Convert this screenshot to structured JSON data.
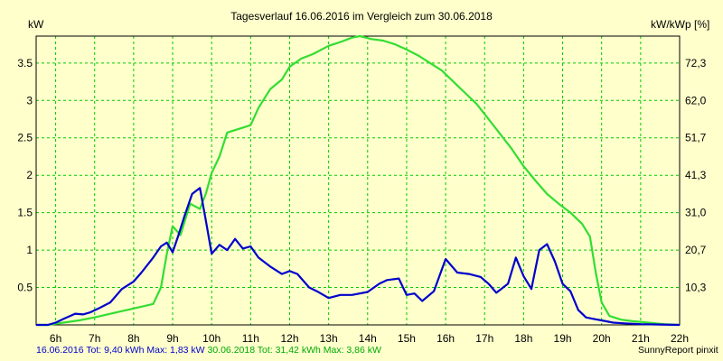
{
  "chart_data": {
    "type": "line",
    "title": "Tagesverlauf 16.06.2016 im Vergleich zum 30.06.2018",
    "ylabel_left": "kW",
    "ylabel_right": "kW/kWp [%]",
    "ylim": [
      0,
      3.86
    ],
    "y_ticks": [
      "0.5",
      "1",
      "1.5",
      "2",
      "2.5",
      "3",
      "3.5"
    ],
    "y_right_ticks": [
      "10,3",
      "20,7",
      "31,0",
      "41,3",
      "51,7",
      "62,0",
      "72,3"
    ],
    "x_ticks": [
      "6h",
      "7h",
      "8h",
      "9h",
      "10h",
      "11h",
      "12h",
      "13h",
      "14h",
      "15h",
      "16h",
      "17h",
      "18h",
      "19h",
      "20h",
      "21h",
      "22h"
    ],
    "grid": true,
    "series": [
      {
        "name": "16.06.2016",
        "color": "#0000cc",
        "points": [
          [
            5.5,
            0
          ],
          [
            5.8,
            0
          ],
          [
            6.0,
            0.03
          ],
          [
            6.2,
            0.08
          ],
          [
            6.5,
            0.15
          ],
          [
            6.7,
            0.14
          ],
          [
            6.9,
            0.17
          ],
          [
            7.1,
            0.22
          ],
          [
            7.4,
            0.3
          ],
          [
            7.7,
            0.48
          ],
          [
            8.0,
            0.58
          ],
          [
            8.2,
            0.7
          ],
          [
            8.5,
            0.9
          ],
          [
            8.7,
            1.05
          ],
          [
            8.85,
            1.1
          ],
          [
            9.0,
            0.97
          ],
          [
            9.15,
            1.2
          ],
          [
            9.3,
            1.45
          ],
          [
            9.5,
            1.75
          ],
          [
            9.7,
            1.83
          ],
          [
            9.85,
            1.4
          ],
          [
            10.0,
            0.95
          ],
          [
            10.2,
            1.07
          ],
          [
            10.4,
            1.0
          ],
          [
            10.6,
            1.15
          ],
          [
            10.8,
            1.02
          ],
          [
            11.0,
            1.05
          ],
          [
            11.2,
            0.9
          ],
          [
            11.5,
            0.78
          ],
          [
            11.8,
            0.68
          ],
          [
            12.0,
            0.72
          ],
          [
            12.2,
            0.68
          ],
          [
            12.5,
            0.5
          ],
          [
            12.7,
            0.45
          ],
          [
            13.0,
            0.36
          ],
          [
            13.3,
            0.4
          ],
          [
            13.6,
            0.4
          ],
          [
            14.0,
            0.44
          ],
          [
            14.3,
            0.55
          ],
          [
            14.5,
            0.6
          ],
          [
            14.8,
            0.62
          ],
          [
            15.0,
            0.4
          ],
          [
            15.2,
            0.42
          ],
          [
            15.4,
            0.32
          ],
          [
            15.7,
            0.45
          ],
          [
            16.0,
            0.88
          ],
          [
            16.3,
            0.7
          ],
          [
            16.6,
            0.68
          ],
          [
            16.9,
            0.64
          ],
          [
            17.1,
            0.55
          ],
          [
            17.3,
            0.43
          ],
          [
            17.6,
            0.55
          ],
          [
            17.8,
            0.9
          ],
          [
            18.0,
            0.65
          ],
          [
            18.2,
            0.48
          ],
          [
            18.4,
            1.0
          ],
          [
            18.6,
            1.08
          ],
          [
            18.8,
            0.85
          ],
          [
            19.0,
            0.55
          ],
          [
            19.2,
            0.45
          ],
          [
            19.4,
            0.2
          ],
          [
            19.6,
            0.1
          ],
          [
            19.8,
            0.08
          ],
          [
            20.0,
            0.06
          ],
          [
            20.3,
            0.03
          ],
          [
            20.6,
            0.02
          ],
          [
            21.0,
            0.01
          ],
          [
            21.5,
            0.005
          ],
          [
            22.0,
            0
          ]
        ]
      },
      {
        "name": "30.06.2018",
        "color": "#33dd33",
        "points": [
          [
            5.5,
            0
          ],
          [
            5.8,
            0
          ],
          [
            6.2,
            0.03
          ],
          [
            6.6,
            0.06
          ],
          [
            7.0,
            0.1
          ],
          [
            7.5,
            0.16
          ],
          [
            8.0,
            0.22
          ],
          [
            8.5,
            0.28
          ],
          [
            8.7,
            0.5
          ],
          [
            8.85,
            0.95
          ],
          [
            9.0,
            1.32
          ],
          [
            9.2,
            1.2
          ],
          [
            9.45,
            1.62
          ],
          [
            9.7,
            1.55
          ],
          [
            9.85,
            1.75
          ],
          [
            10.0,
            2.03
          ],
          [
            10.2,
            2.25
          ],
          [
            10.4,
            2.57
          ],
          [
            10.7,
            2.62
          ],
          [
            11.0,
            2.67
          ],
          [
            11.2,
            2.9
          ],
          [
            11.5,
            3.15
          ],
          [
            11.8,
            3.28
          ],
          [
            12.0,
            3.45
          ],
          [
            12.3,
            3.56
          ],
          [
            12.6,
            3.62
          ],
          [
            13.0,
            3.73
          ],
          [
            13.3,
            3.78
          ],
          [
            13.6,
            3.84
          ],
          [
            13.8,
            3.86
          ],
          [
            14.1,
            3.82
          ],
          [
            14.4,
            3.8
          ],
          [
            14.7,
            3.75
          ],
          [
            15.0,
            3.68
          ],
          [
            15.3,
            3.6
          ],
          [
            15.6,
            3.5
          ],
          [
            15.9,
            3.4
          ],
          [
            16.2,
            3.25
          ],
          [
            16.5,
            3.1
          ],
          [
            16.8,
            2.95
          ],
          [
            17.1,
            2.75
          ],
          [
            17.4,
            2.55
          ],
          [
            17.7,
            2.35
          ],
          [
            18.0,
            2.12
          ],
          [
            18.3,
            1.93
          ],
          [
            18.6,
            1.75
          ],
          [
            18.9,
            1.62
          ],
          [
            19.2,
            1.5
          ],
          [
            19.5,
            1.35
          ],
          [
            19.7,
            1.18
          ],
          [
            19.85,
            0.7
          ],
          [
            20.0,
            0.3
          ],
          [
            20.2,
            0.12
          ],
          [
            20.5,
            0.07
          ],
          [
            20.8,
            0.05
          ],
          [
            21.2,
            0.03
          ],
          [
            21.6,
            0.01
          ],
          [
            22.0,
            0
          ]
        ]
      }
    ]
  },
  "footer": {
    "series1_text": "16.06.2016 Tot: 9,40 kWh Max: 1,83 kW",
    "series2_text": "30.06.2018 Tot: 31,42 kWh Max: 3,86 kW",
    "credit": "SunnyReport pinxit"
  },
  "colors": {
    "background": "#ffffcc",
    "grid": "#00cc00",
    "series1": "#0000cc",
    "series2": "#33dd33"
  }
}
